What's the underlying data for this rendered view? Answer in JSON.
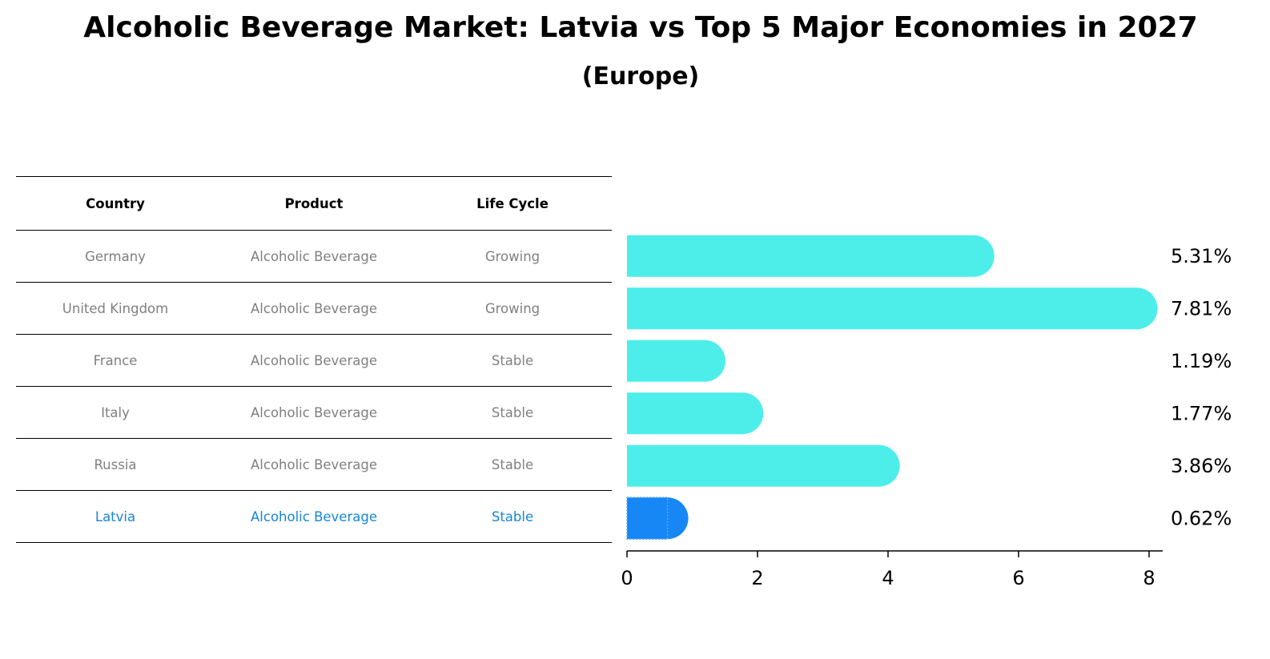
{
  "chart_data": {
    "type": "bar",
    "title": "Alcoholic Beverage Market: Latvia vs Top 5 Major Economies in 2027",
    "subtitle": "(Europe)",
    "table": {
      "columns": [
        "Country",
        "Product",
        "Life Cycle"
      ],
      "rows": [
        {
          "country": "Germany",
          "product": "Alcoholic Beverage",
          "life_cycle": "Growing"
        },
        {
          "country": "United Kingdom",
          "product": "Alcoholic Beverage",
          "life_cycle": "Growing"
        },
        {
          "country": "France",
          "product": "Alcoholic Beverage",
          "life_cycle": "Stable"
        },
        {
          "country": "Italy",
          "product": "Alcoholic Beverage",
          "life_cycle": "Stable"
        },
        {
          "country": "Russia",
          "product": "Alcoholic Beverage",
          "life_cycle": "Stable"
        },
        {
          "country": "Latvia",
          "product": "Alcoholic Beverage",
          "life_cycle": "Stable"
        }
      ]
    },
    "categories": [
      "Germany",
      "United Kingdom",
      "France",
      "Italy",
      "Russia",
      "Latvia"
    ],
    "values": [
      5.31,
      7.81,
      1.19,
      1.77,
      3.86,
      0.62
    ],
    "value_labels": [
      "5.31%",
      "7.81%",
      "1.19%",
      "1.77%",
      "3.86%",
      "0.62%"
    ],
    "highlight": "Latvia",
    "xlim": [
      0,
      8.2
    ],
    "xticks": [
      "0",
      "2",
      "4",
      "6",
      "8"
    ],
    "xtick_values": [
      0,
      2,
      4,
      6,
      8
    ],
    "colors": {
      "bar": "#4deeea",
      "highlight": "#1787f5",
      "highlight_text": "#1787d8"
    }
  }
}
